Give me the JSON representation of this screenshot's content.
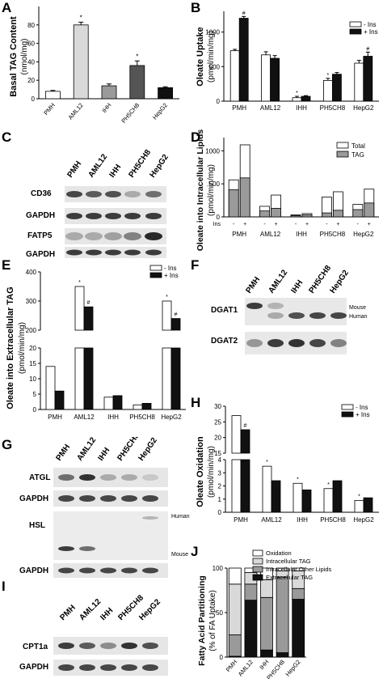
{
  "panel_letters": {
    "A": "A",
    "B": "B",
    "C": "C",
    "D": "D",
    "E": "E",
    "F": "F",
    "G": "G",
    "H": "H",
    "I": "I",
    "J": "J"
  },
  "colors": {
    "white": "#ffffff",
    "light": "#d9d9d9",
    "mid": "#9a9a9a",
    "dark": "#555555",
    "black": "#111111"
  },
  "blots": {
    "C": {
      "lanes": [
        "PMH",
        "AML12",
        "IHH",
        "PH5CH8",
        "HepG2"
      ],
      "rows": [
        "CD36",
        "GAPDH",
        "FATP5",
        "GAPDH"
      ]
    },
    "F": {
      "lanes": [
        "PMH",
        "AML12",
        "IHH",
        "PH5CH8",
        "HepG2"
      ],
      "rows": [
        "DGAT1",
        "DGAT2"
      ],
      "side_labels": [
        "Mouse",
        "Human"
      ]
    },
    "G": {
      "lanes": [
        "PMH",
        "AML12",
        "IHH",
        "PH5CH8",
        "HepG2"
      ],
      "rows": [
        "ATGL",
        "GAPDH",
        "HSL",
        "GAPDH"
      ],
      "side_labels": [
        "Human",
        "Mouse"
      ]
    },
    "I": {
      "lanes": [
        "PMH",
        "AML12",
        "IHH",
        "PH5CH8",
        "HepG2"
      ],
      "rows": [
        "CPT1a",
        "GAPDH"
      ]
    }
  },
  "chart_data": [
    {
      "panel": "A",
      "type": "bar",
      "ylabel": "Basal TAG Content",
      "yunit": "(nmol/mg)",
      "categories": [
        "PMH",
        "AML12",
        "IHH",
        "PH5CH8",
        "HepG2"
      ],
      "values": [
        8,
        80,
        14,
        36,
        12
      ],
      "errors": [
        1,
        3,
        2,
        5,
        1
      ],
      "colors": [
        "#ffffff",
        "#d9d9d9",
        "#9a9a9a",
        "#555555",
        "#111111"
      ],
      "ylim": [
        0,
        100
      ],
      "yticks": [
        0,
        20,
        40,
        60,
        80
      ],
      "marks": [
        "",
        "*",
        "",
        "*",
        ""
      ]
    },
    {
      "panel": "B",
      "type": "bar",
      "ylabel": "Oleate Uptake",
      "yunit": "(pmol/min/mg)",
      "categories": [
        "PMH",
        "AML12",
        "IHH",
        "PH5CH8",
        "HepG2"
      ],
      "series": [
        {
          "name": "- Ins",
          "values": [
            730,
            670,
            50,
            300,
            550
          ],
          "errors": [
            20,
            45,
            20,
            30,
            40
          ]
        },
        {
          "name": "+ Ins",
          "values": [
            1200,
            620,
            70,
            390,
            650
          ],
          "errors": [
            25,
            40,
            10,
            25,
            60
          ]
        }
      ],
      "ylim": [
        0,
        1300
      ],
      "yticks": [
        0,
        500,
        1000
      ],
      "marks": [
        [
          "",
          "#"
        ],
        [
          "",
          ""
        ],
        [
          "*",
          ""
        ],
        [
          "*",
          ""
        ],
        [
          "",
          "#"
        ]
      ]
    },
    {
      "panel": "D",
      "type": "bar",
      "ylabel": "Oleate into Intracellular Lipids",
      "yunit": "(pmol/min/mg)",
      "x_rows": [
        "Ins",
        "PMH",
        "AML12",
        "IHH",
        "PH5CH8",
        "HepG2"
      ],
      "ins_signs": [
        "-",
        "+"
      ],
      "categories": [
        "PMH",
        "AML12",
        "IHH",
        "PH5CH8",
        "HepG2"
      ],
      "series": [
        {
          "name": "Total",
          "values": [
            [
              560,
              1090
            ],
            [
              160,
              330
            ],
            [
              30,
              50
            ],
            [
              300,
              380
            ],
            [
              190,
              420
            ]
          ]
        },
        {
          "name": "TAG",
          "values": [
            [
              410,
              590
            ],
            [
              90,
              130
            ],
            [
              20,
              30
            ],
            [
              60,
              100
            ],
            [
              110,
              210
            ]
          ]
        }
      ],
      "ylim": [
        0,
        1200
      ],
      "yticks": [
        0,
        500,
        1000
      ]
    },
    {
      "panel": "E",
      "type": "bar",
      "ylabel": "Oleate into Extracellular TAG",
      "yunit": "(pmol/min/mg)",
      "categories": [
        "PMH",
        "AML12",
        "IHH",
        "PH5CH8",
        "HepG2"
      ],
      "series": [
        {
          "name": "- Ins",
          "values": [
            14,
            350,
            4,
            1.5,
            300
          ]
        },
        {
          "name": "+ Ins",
          "values": [
            6,
            280,
            4.5,
            2,
            240
          ]
        }
      ],
      "lower_range": [
        0,
        20
      ],
      "lower_ticks": [
        0,
        5,
        10,
        15,
        20
      ],
      "upper_range": [
        200,
        400
      ],
      "upper_ticks": [
        200,
        300,
        400
      ],
      "marks": [
        [
          "",
          ""
        ],
        [
          "*",
          "#"
        ],
        [
          "",
          ""
        ],
        [
          "",
          ""
        ],
        [
          "*",
          "#"
        ]
      ]
    },
    {
      "panel": "H",
      "type": "bar",
      "ylabel": "Oleate Oxidation",
      "yunit": "(pmol/min/mg)",
      "categories": [
        "PMH",
        "AML12",
        "IHH",
        "PH5CH8",
        "HepG2"
      ],
      "series": [
        {
          "name": "- Ins",
          "values": [
            27,
            3.5,
            2.2,
            1.8,
            0.9
          ]
        },
        {
          "name": "+ Ins",
          "values": [
            22.5,
            2.4,
            1.7,
            2.4,
            1.1
          ]
        }
      ],
      "lower_range": [
        0,
        4
      ],
      "lower_ticks": [
        0,
        1,
        2,
        3,
        4
      ],
      "upper_range": [
        15,
        30
      ],
      "upper_ticks": [
        15,
        20,
        25,
        30
      ],
      "marks": [
        [
          "",
          "#"
        ],
        [
          "*",
          ""
        ],
        [
          "*",
          ""
        ],
        [
          "*",
          ""
        ],
        [
          "*",
          ""
        ]
      ]
    },
    {
      "panel": "J",
      "type": "bar",
      "stacked": true,
      "ylabel": "Fatty Acid Partitioning",
      "yunit": "(% of FA Uptake)",
      "categories": [
        "PMH",
        "AML12",
        "IHH",
        "PH5CH8",
        "HepG2"
      ],
      "series": [
        {
          "name": "Oxidation",
          "values": [
            18,
            5,
            13,
            3,
            3
          ]
        },
        {
          "name": "Intracellular TAG",
          "values": [
            57,
            13,
            20,
            7,
            20
          ]
        },
        {
          "name": "Intracellular Other Lipids",
          "values": [
            24,
            18,
            59,
            85,
            12
          ]
        },
        {
          "name": "Extracellular TAG",
          "values": [
            1,
            64,
            8,
            5,
            65
          ]
        }
      ],
      "ylim": [
        0,
        100
      ],
      "yticks": [
        0,
        50,
        100
      ]
    }
  ]
}
